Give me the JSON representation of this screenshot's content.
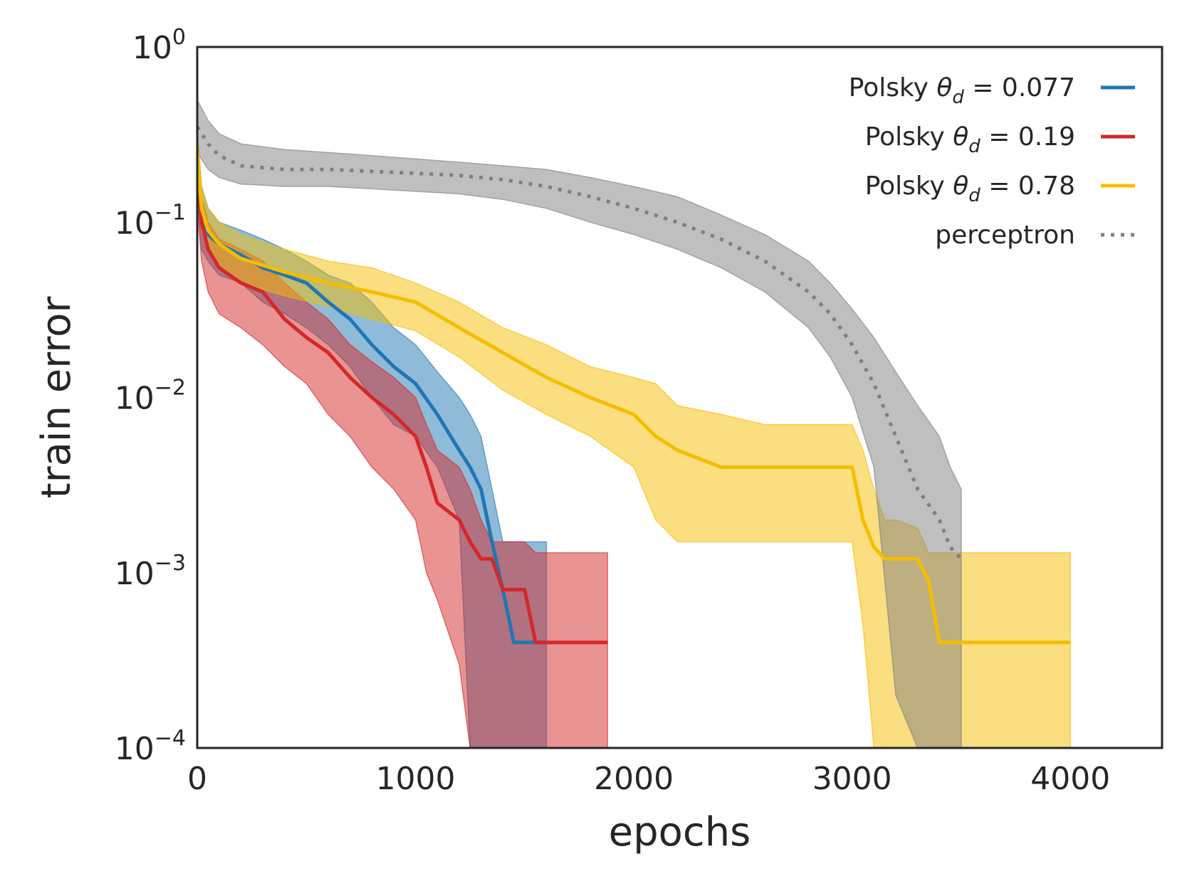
{
  "chart_data": {
    "type": "line",
    "title": "",
    "xlabel": "epochs",
    "ylabel": "train error",
    "xscale": "linear",
    "yscale": "log",
    "xlim": [
      0,
      4420
    ],
    "ylim": [
      0.0001,
      1
    ],
    "x_ticks": [
      0,
      1000,
      2000,
      3000,
      4000
    ],
    "x_tick_labels": [
      "0",
      "1000",
      "2000",
      "3000",
      "4000"
    ],
    "y_ticks": [
      1,
      0.1,
      0.01,
      0.001,
      0.0001
    ],
    "y_tick_labels": [
      {
        "base": "10",
        "exp": "0"
      },
      {
        "base": "10",
        "exp": "−1"
      },
      {
        "base": "10",
        "exp": "−2"
      },
      {
        "base": "10",
        "exp": "−3"
      },
      {
        "base": "10",
        "exp": "−4"
      }
    ],
    "grid": false,
    "legend_position": "top-right",
    "series": [
      {
        "name": "Polsky θd = 0.077",
        "legend": {
          "prefix": "Polsky ",
          "theta": "θ",
          "sub": "d",
          "suffix": " = 0.077"
        },
        "color": "#1f77b4",
        "style": "solid",
        "x": [
          0,
          20,
          50,
          100,
          200,
          300,
          400,
          500,
          600,
          700,
          800,
          900,
          1000,
          1100,
          1200,
          1250,
          1300,
          1350,
          1400,
          1450,
          1600
        ],
        "y": [
          0.2,
          0.1,
          0.085,
          0.075,
          0.065,
          0.055,
          0.05,
          0.045,
          0.035,
          0.028,
          0.02,
          0.015,
          0.012,
          0.008,
          0.005,
          0.004,
          0.003,
          0.0015,
          0.0008,
          0.0004,
          0.0004
        ],
        "y_upper": [
          0.3,
          0.16,
          0.12,
          0.1,
          0.09,
          0.08,
          0.07,
          0.06,
          0.05,
          0.045,
          0.035,
          0.025,
          0.02,
          0.014,
          0.01,
          0.008,
          0.006,
          0.003,
          0.0015,
          0.0015,
          0.0015
        ],
        "y_lower": [
          0.15,
          0.07,
          0.06,
          0.05,
          0.045,
          0.035,
          0.03,
          0.025,
          0.02,
          0.015,
          0.01,
          0.007,
          0.006,
          0.004,
          0.002,
          0.0001,
          0.0001,
          0.0001,
          0.0001,
          0.0001,
          0.0001
        ]
      },
      {
        "name": "Polsky θd = 0.19",
        "legend": {
          "prefix": "Polsky ",
          "theta": "θ",
          "sub": "d",
          "suffix": " = 0.19"
        },
        "color": "#d62728",
        "style": "solid",
        "x": [
          0,
          20,
          50,
          100,
          200,
          300,
          400,
          500,
          600,
          700,
          800,
          900,
          1000,
          1050,
          1100,
          1200,
          1250,
          1300,
          1350,
          1400,
          1500,
          1550,
          1880
        ],
        "y": [
          0.2,
          0.1,
          0.07,
          0.055,
          0.045,
          0.04,
          0.028,
          0.022,
          0.018,
          0.013,
          0.01,
          0.008,
          0.006,
          0.004,
          0.0025,
          0.002,
          0.0015,
          0.0012,
          0.0012,
          0.0008,
          0.0008,
          0.0004,
          0.0004
        ],
        "y_upper": [
          0.3,
          0.14,
          0.1,
          0.08,
          0.07,
          0.06,
          0.045,
          0.035,
          0.028,
          0.02,
          0.016,
          0.013,
          0.01,
          0.007,
          0.005,
          0.004,
          0.003,
          0.002,
          0.0015,
          0.0015,
          0.0015,
          0.0013,
          0.0013
        ],
        "y_lower": [
          0.12,
          0.06,
          0.04,
          0.03,
          0.025,
          0.02,
          0.015,
          0.012,
          0.008,
          0.006,
          0.004,
          0.003,
          0.002,
          0.001,
          0.0007,
          0.0003,
          0.0001,
          0.0001,
          0.0001,
          0.0001,
          0.0001,
          0.0001,
          0.0001
        ]
      },
      {
        "name": "Polsky θd = 0.78",
        "legend": {
          "prefix": "Polsky ",
          "theta": "θ",
          "sub": "d",
          "suffix": " = 0.78"
        },
        "color": "#f5bd00",
        "style": "solid",
        "x": [
          0,
          20,
          50,
          100,
          200,
          400,
          600,
          800,
          1000,
          1200,
          1400,
          1600,
          1800,
          2000,
          2100,
          2200,
          2400,
          2600,
          2900,
          3000,
          3050,
          3100,
          3150,
          3200,
          3300,
          3350,
          3400,
          3450,
          3500,
          4000
        ],
        "y": [
          0.25,
          0.12,
          0.09,
          0.075,
          0.062,
          0.052,
          0.045,
          0.04,
          0.035,
          0.025,
          0.018,
          0.013,
          0.01,
          0.008,
          0.006,
          0.005,
          0.004,
          0.004,
          0.004,
          0.004,
          0.002,
          0.0014,
          0.0012,
          0.0012,
          0.0012,
          0.0009,
          0.0004,
          0.0004,
          0.0004,
          0.0004
        ],
        "y_upper": [
          0.35,
          0.16,
          0.12,
          0.1,
          0.085,
          0.07,
          0.06,
          0.055,
          0.045,
          0.035,
          0.025,
          0.02,
          0.015,
          0.013,
          0.012,
          0.009,
          0.008,
          0.007,
          0.007,
          0.007,
          0.005,
          0.003,
          0.002,
          0.002,
          0.0018,
          0.0013,
          0.0013,
          0.0013,
          0.0013,
          0.0013
        ],
        "y_lower": [
          0.18,
          0.09,
          0.07,
          0.055,
          0.045,
          0.038,
          0.033,
          0.028,
          0.024,
          0.017,
          0.011,
          0.008,
          0.006,
          0.004,
          0.002,
          0.0015,
          0.0015,
          0.0015,
          0.0015,
          0.0015,
          0.0005,
          0.0001,
          0.0001,
          0.0001,
          0.0001,
          0.0001,
          0.0001,
          0.0001,
          0.0001,
          0.0001
        ]
      },
      {
        "name": "perceptron",
        "legend": {
          "prefix": "perceptron",
          "theta": "",
          "sub": "",
          "suffix": ""
        },
        "color": "#7f7f7f",
        "style": "dotted",
        "x": [
          0,
          50,
          100,
          200,
          400,
          600,
          800,
          1000,
          1200,
          1400,
          1600,
          1800,
          2000,
          2200,
          2400,
          2600,
          2800,
          2900,
          3000,
          3100,
          3200,
          3300,
          3400,
          3450,
          3500
        ],
        "y": [
          0.35,
          0.28,
          0.24,
          0.21,
          0.2,
          0.2,
          0.195,
          0.19,
          0.185,
          0.175,
          0.16,
          0.14,
          0.12,
          0.1,
          0.08,
          0.06,
          0.04,
          0.03,
          0.02,
          0.012,
          0.006,
          0.003,
          0.002,
          0.0014,
          0.0012
        ],
        "y_upper": [
          0.5,
          0.38,
          0.32,
          0.28,
          0.26,
          0.25,
          0.24,
          0.23,
          0.22,
          0.21,
          0.2,
          0.18,
          0.16,
          0.14,
          0.11,
          0.085,
          0.06,
          0.045,
          0.032,
          0.022,
          0.014,
          0.009,
          0.006,
          0.004,
          0.003
        ],
        "y_lower": [
          0.25,
          0.2,
          0.18,
          0.165,
          0.16,
          0.16,
          0.155,
          0.15,
          0.145,
          0.135,
          0.12,
          0.1,
          0.085,
          0.07,
          0.055,
          0.04,
          0.025,
          0.017,
          0.01,
          0.004,
          0.0002,
          0.0001,
          0.0001,
          0.0001,
          0.0001
        ]
      }
    ]
  }
}
